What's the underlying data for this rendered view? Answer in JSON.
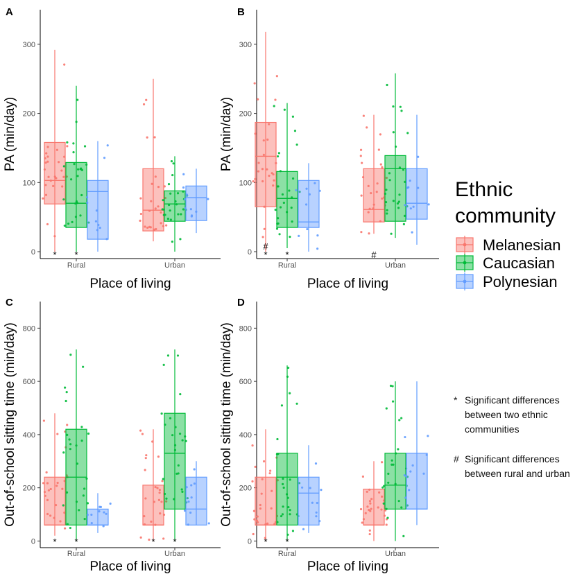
{
  "colors": {
    "melanesian": "#F8766D",
    "caucasian": "#00BA38",
    "polynesian": "#619CFF"
  },
  "legend": {
    "title_line1": "Ethnic",
    "title_line2": "community",
    "items": [
      "Melanesian",
      "Caucasian",
      "Polynesian"
    ]
  },
  "notes": {
    "star_symbol": "*",
    "star_text": "Significant differences between two ethnic communities",
    "hash_symbol": "#",
    "hash_text": "Significant differences between rural and urban"
  },
  "chart_data": [
    {
      "panel": "A",
      "type": "box",
      "ylabel": "PA (min/day)",
      "xlabel": "Place of living",
      "ylim": [
        -10,
        350
      ],
      "yticks": [
        0,
        100,
        200,
        300
      ],
      "categories": [
        "Rural",
        "Urban"
      ],
      "series": [
        {
          "name": "Melanesian",
          "boxes": [
            {
              "category": "Rural",
              "whisker_low": 0,
              "q1": 69,
              "median": 103,
              "q3": 158,
              "whisker_high": 292
            },
            {
              "category": "Urban",
              "whisker_low": 15,
              "q1": 30,
              "median": 60,
              "q3": 120,
              "whisker_high": 250
            }
          ]
        },
        {
          "name": "Caucasian",
          "boxes": [
            {
              "category": "Rural",
              "whisker_low": 0,
              "q1": 35,
              "median": 70,
              "q3": 129,
              "whisker_high": 240
            },
            {
              "category": "Urban",
              "whisker_low": 0,
              "q1": 44,
              "median": 69,
              "q3": 88,
              "whisker_high": 138
            }
          ]
        },
        {
          "name": "Polynesian",
          "boxes": [
            {
              "category": "Rural",
              "whisker_low": 0,
              "q1": 18,
              "median": 87,
              "q3": 103,
              "whisker_high": 160
            },
            {
              "category": "Urban",
              "whisker_low": 27,
              "q1": 45,
              "median": 78,
              "q3": 95,
              "whisker_high": 120
            }
          ]
        }
      ],
      "markers": [
        {
          "symbol": "*",
          "category": "Rural",
          "group": "Melanesian"
        },
        {
          "symbol": "*",
          "category": "Rural",
          "group": "Caucasian"
        }
      ]
    },
    {
      "panel": "B",
      "type": "box",
      "ylabel": "PA (min/day)",
      "xlabel": "Place of living",
      "ylim": [
        -10,
        350
      ],
      "yticks": [
        0,
        100,
        200,
        300
      ],
      "categories": [
        "Rural",
        "Urban"
      ],
      "series": [
        {
          "name": "Melanesian",
          "boxes": [
            {
              "category": "Rural",
              "whisker_low": 0,
              "q1": 65,
              "median": 138,
              "q3": 187,
              "whisker_high": 318
            },
            {
              "category": "Urban",
              "whisker_low": 26,
              "q1": 43,
              "median": 61,
              "q3": 120,
              "whisker_high": 198
            }
          ]
        },
        {
          "name": "Caucasian",
          "boxes": [
            {
              "category": "Rural",
              "whisker_low": 5,
              "q1": 35,
              "median": 77,
              "q3": 116,
              "whisker_high": 215
            },
            {
              "category": "Urban",
              "whisker_low": 20,
              "q1": 44,
              "median": 120,
              "q3": 139,
              "whisker_high": 258
            }
          ]
        },
        {
          "name": "Polynesian",
          "boxes": [
            {
              "category": "Rural",
              "whisker_low": 0,
              "q1": 35,
              "median": 43,
              "q3": 103,
              "whisker_high": 128
            },
            {
              "category": "Urban",
              "whisker_low": 10,
              "q1": 47,
              "median": 70,
              "q3": 120,
              "whisker_high": 198
            }
          ]
        }
      ],
      "markers": [
        {
          "symbol": "#",
          "category": "Rural",
          "group": "Melanesian"
        },
        {
          "symbol": "*",
          "category": "Rural",
          "group": "Melanesian"
        },
        {
          "symbol": "*",
          "category": "Rural",
          "group": "Caucasian"
        },
        {
          "symbol": "#",
          "category": "Urban",
          "group": "Melanesian"
        }
      ]
    },
    {
      "panel": "C",
      "type": "box",
      "ylabel": "Out-of-school sitting time (min/day)",
      "xlabel": "Place of living",
      "ylim": [
        -25,
        900
      ],
      "yticks": [
        0,
        200,
        400,
        600,
        800
      ],
      "categories": [
        "Rural",
        "Urban"
      ],
      "series": [
        {
          "name": "Melanesian",
          "boxes": [
            {
              "category": "Rural",
              "whisker_low": 20,
              "q1": 60,
              "median": 60,
              "q3": 240,
              "whisker_high": 480
            },
            {
              "category": "Urban",
              "whisker_low": 0,
              "q1": 60,
              "median": 60,
              "q3": 210,
              "whisker_high": 420
            }
          ]
        },
        {
          "name": "Caucasian",
          "boxes": [
            {
              "category": "Rural",
              "whisker_low": 0,
              "q1": 60,
              "median": 240,
              "q3": 420,
              "whisker_high": 720
            },
            {
              "category": "Urban",
              "whisker_low": 0,
              "q1": 120,
              "median": 330,
              "q3": 480,
              "whisker_high": 720
            }
          ]
        },
        {
          "name": "Polynesian",
          "boxes": [
            {
              "category": "Rural",
              "whisker_low": 30,
              "q1": 60,
              "median": 60,
              "q3": 120,
              "whisker_high": 180
            },
            {
              "category": "Urban",
              "whisker_low": 60,
              "q1": 60,
              "median": 120,
              "q3": 240,
              "whisker_high": 300
            }
          ]
        }
      ],
      "markers": [
        {
          "symbol": "*",
          "category": "Rural",
          "group": "Melanesian"
        },
        {
          "symbol": "*",
          "category": "Rural",
          "group": "Caucasian"
        },
        {
          "symbol": "*",
          "category": "Urban",
          "group": "Melanesian"
        },
        {
          "symbol": "*",
          "category": "Urban",
          "group": "Caucasian"
        }
      ]
    },
    {
      "panel": "D",
      "type": "box",
      "ylabel": "Out-of-school sitting time (min/day)",
      "xlabel": "Place of living",
      "ylim": [
        -25,
        900
      ],
      "yticks": [
        0,
        200,
        400,
        600,
        800
      ],
      "categories": [
        "Rural",
        "Urban"
      ],
      "series": [
        {
          "name": "Melanesian",
          "boxes": [
            {
              "category": "Rural",
              "whisker_low": 0,
              "q1": 60,
              "median": 60,
              "q3": 240,
              "whisker_high": 420
            },
            {
              "category": "Urban",
              "whisker_low": 0,
              "q1": 60,
              "median": 60,
              "q3": 195,
              "whisker_high": 300
            }
          ]
        },
        {
          "name": "Caucasian",
          "boxes": [
            {
              "category": "Rural",
              "whisker_low": 0,
              "q1": 60,
              "median": 240,
              "q3": 330,
              "whisker_high": 660
            },
            {
              "category": "Urban",
              "whisker_low": 0,
              "q1": 120,
              "median": 210,
              "q3": 330,
              "whisker_high": 600
            }
          ]
        },
        {
          "name": "Polynesian",
          "boxes": [
            {
              "category": "Rural",
              "whisker_low": 30,
              "q1": 60,
              "median": 180,
              "q3": 240,
              "whisker_high": 360
            },
            {
              "category": "Urban",
              "whisker_low": 60,
              "q1": 120,
              "median": 120,
              "q3": 330,
              "whisker_high": 600
            }
          ]
        }
      ],
      "markers": [
        {
          "symbol": "*",
          "category": "Rural",
          "group": "Melanesian"
        },
        {
          "symbol": "*",
          "category": "Rural",
          "group": "Caucasian"
        }
      ]
    }
  ]
}
